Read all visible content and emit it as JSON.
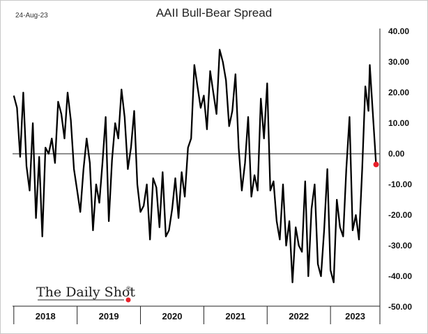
{
  "date_stamp": "24-Aug-23",
  "brand": "The Daily Shot",
  "brand_mark": "®",
  "chart_data": {
    "type": "line",
    "title": "AAII Bull-Bear Spread",
    "xlabel": "",
    "ylabel": "",
    "ylim": [
      -50,
      40
    ],
    "y_ticks": [
      "40.00",
      "30.00",
      "20.00",
      "10.00",
      "0.00",
      "-10.00",
      "-20.00",
      "-30.00",
      "-40.00",
      "-50.00"
    ],
    "x_categories": [
      "2018",
      "2019",
      "2020",
      "2021",
      "2022",
      "2023"
    ],
    "grid": false,
    "zero_line": true,
    "series": [
      {
        "color": "#000000",
        "x": [
          2018.0,
          2018.05,
          2018.1,
          2018.15,
          2018.2,
          2018.25,
          2018.3,
          2018.35,
          2018.4,
          2018.45,
          2018.5,
          2018.55,
          2018.6,
          2018.65,
          2018.7,
          2018.75,
          2018.8,
          2018.85,
          2018.9,
          2018.95,
          2019.0,
          2019.05,
          2019.1,
          2019.15,
          2019.2,
          2019.25,
          2019.3,
          2019.35,
          2019.4,
          2019.45,
          2019.5,
          2019.55,
          2019.6,
          2019.65,
          2019.7,
          2019.75,
          2019.8,
          2019.85,
          2019.9,
          2019.95,
          2020.0,
          2020.05,
          2020.1,
          2020.15,
          2020.2,
          2020.25,
          2020.3,
          2020.35,
          2020.4,
          2020.45,
          2020.5,
          2020.55,
          2020.6,
          2020.65,
          2020.7,
          2020.75,
          2020.8,
          2020.85,
          2020.9,
          2020.95,
          2021.0,
          2021.05,
          2021.1,
          2021.15,
          2021.2,
          2021.25,
          2021.3,
          2021.35,
          2021.4,
          2021.45,
          2021.5,
          2021.55,
          2021.6,
          2021.65,
          2021.7,
          2021.75,
          2021.8,
          2021.85,
          2021.9,
          2021.95,
          2022.0,
          2022.05,
          2022.1,
          2022.15,
          2022.2,
          2022.25,
          2022.3,
          2022.35,
          2022.4,
          2022.45,
          2022.5,
          2022.55,
          2022.6,
          2022.65,
          2022.7,
          2022.75,
          2022.8,
          2022.85,
          2022.9,
          2022.95,
          2023.0,
          2023.05,
          2023.1,
          2023.15,
          2023.2,
          2023.25,
          2023.3,
          2023.35,
          2023.4,
          2023.45,
          2023.5,
          2023.55,
          2023.6,
          2023.62
        ],
        "values": [
          19,
          15,
          -1,
          20,
          -4,
          -12,
          10,
          -21,
          -1,
          -27,
          2,
          0,
          5,
          -3,
          17,
          13,
          5,
          20,
          11,
          -5,
          -12,
          -19,
          -5,
          5,
          -3,
          -25,
          -10,
          -16,
          -3,
          12,
          -22,
          -2,
          10,
          5,
          21,
          12,
          -5,
          2,
          14,
          -10,
          -19,
          -17,
          -10,
          -28,
          -8,
          -11,
          -24,
          -6,
          -27,
          -25,
          -18,
          -8,
          -21,
          -6,
          -14,
          2,
          5,
          29,
          22,
          15,
          19,
          8,
          27,
          20,
          13,
          34,
          30,
          24,
          9,
          14,
          26,
          2,
          -12,
          -3,
          12,
          -14,
          -7,
          -12,
          18,
          5,
          23,
          -12,
          -9,
          -22,
          -28,
          -10,
          -30,
          -22,
          -42,
          -24,
          -30,
          -32,
          -9,
          -40,
          -18,
          -10,
          -36,
          -40,
          -25,
          -5,
          -38,
          -42,
          -15,
          -24,
          -27,
          -5,
          12,
          -25,
          -20,
          -28,
          -5,
          22,
          14,
          29
        ]
      }
    ],
    "last_point": {
      "x": 2023.72,
      "value": -3.5,
      "color": "#e8202a"
    }
  }
}
